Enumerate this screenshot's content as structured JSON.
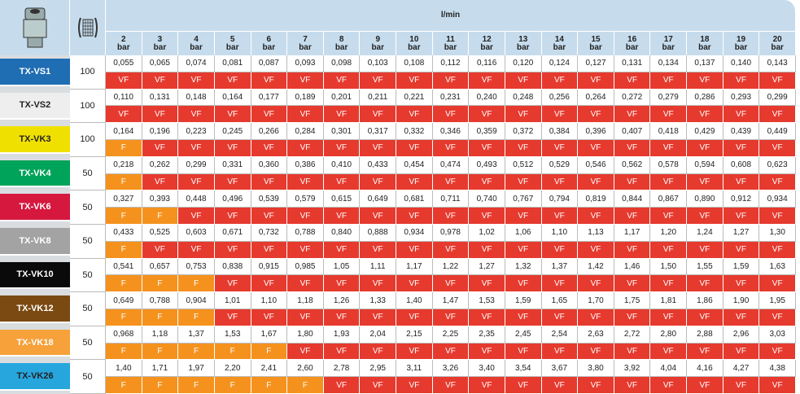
{
  "header": {
    "flow_unit": "l/min",
    "pressure_unit": "bar",
    "pressures": [
      "2",
      "3",
      "4",
      "5",
      "6",
      "7",
      "8",
      "9",
      "10",
      "11",
      "12",
      "13",
      "14",
      "15",
      "16",
      "17",
      "18",
      "19",
      "20"
    ]
  },
  "rows": [
    {
      "name": "TX-VS1",
      "mesh": "100",
      "values": [
        "0,055",
        "0,065",
        "0,074",
        "0,081",
        "0,087",
        "0,093",
        "0,098",
        "0,103",
        "0,108",
        "0,112",
        "0,116",
        "0,120",
        "0,124",
        "0,127",
        "0,131",
        "0,134",
        "0,137",
        "0,140",
        "0,143"
      ],
      "classes": [
        "VF",
        "VF",
        "VF",
        "VF",
        "VF",
        "VF",
        "VF",
        "VF",
        "VF",
        "VF",
        "VF",
        "VF",
        "VF",
        "VF",
        "VF",
        "VF",
        "VF",
        "VF",
        "VF"
      ]
    },
    {
      "name": "TX-VS2",
      "mesh": "100",
      "values": [
        "0,110",
        "0,131",
        "0,148",
        "0,164",
        "0,177",
        "0,189",
        "0,201",
        "0,211",
        "0,221",
        "0,231",
        "0,240",
        "0,248",
        "0,256",
        "0,264",
        "0,272",
        "0,279",
        "0,286",
        "0,293",
        "0,299"
      ],
      "classes": [
        "VF",
        "VF",
        "VF",
        "VF",
        "VF",
        "VF",
        "VF",
        "VF",
        "VF",
        "VF",
        "VF",
        "VF",
        "VF",
        "VF",
        "VF",
        "VF",
        "VF",
        "VF",
        "VF"
      ]
    },
    {
      "name": "TX-VK3",
      "mesh": "100",
      "values": [
        "0,164",
        "0,196",
        "0,223",
        "0,245",
        "0,266",
        "0,284",
        "0,301",
        "0,317",
        "0,332",
        "0,346",
        "0,359",
        "0,372",
        "0,384",
        "0,396",
        "0,407",
        "0,418",
        "0,429",
        "0,439",
        "0,449"
      ],
      "classes": [
        "F",
        "VF",
        "VF",
        "VF",
        "VF",
        "VF",
        "VF",
        "VF",
        "VF",
        "VF",
        "VF",
        "VF",
        "VF",
        "VF",
        "VF",
        "VF",
        "VF",
        "VF",
        "VF"
      ]
    },
    {
      "name": "TX-VK4",
      "mesh": "50",
      "values": [
        "0,218",
        "0,262",
        "0,299",
        "0,331",
        "0,360",
        "0,386",
        "0,410",
        "0,433",
        "0,454",
        "0,474",
        "0,493",
        "0,512",
        "0,529",
        "0,546",
        "0,562",
        "0,578",
        "0,594",
        "0,608",
        "0,623"
      ],
      "classes": [
        "F",
        "VF",
        "VF",
        "VF",
        "VF",
        "VF",
        "VF",
        "VF",
        "VF",
        "VF",
        "VF",
        "VF",
        "VF",
        "VF",
        "VF",
        "VF",
        "VF",
        "VF",
        "VF"
      ]
    },
    {
      "name": "TX-VK6",
      "mesh": "50",
      "values": [
        "0,327",
        "0,393",
        "0,448",
        "0,496",
        "0,539",
        "0,579",
        "0,615",
        "0,649",
        "0,681",
        "0,711",
        "0,740",
        "0,767",
        "0,794",
        "0,819",
        "0,844",
        "0,867",
        "0,890",
        "0,912",
        "0,934"
      ],
      "classes": [
        "F",
        "F",
        "VF",
        "VF",
        "VF",
        "VF",
        "VF",
        "VF",
        "VF",
        "VF",
        "VF",
        "VF",
        "VF",
        "VF",
        "VF",
        "VF",
        "VF",
        "VF",
        "VF"
      ]
    },
    {
      "name": "TX-VK8",
      "mesh": "50",
      "values": [
        "0,433",
        "0,525",
        "0,603",
        "0,671",
        "0,732",
        "0,788",
        "0,840",
        "0,888",
        "0,934",
        "0,978",
        "1,02",
        "1,06",
        "1,10",
        "1,13",
        "1,17",
        "1,20",
        "1,24",
        "1,27",
        "1,30"
      ],
      "classes": [
        "F",
        "VF",
        "VF",
        "VF",
        "VF",
        "VF",
        "VF",
        "VF",
        "VF",
        "VF",
        "VF",
        "VF",
        "VF",
        "VF",
        "VF",
        "VF",
        "VF",
        "VF",
        "VF"
      ]
    },
    {
      "name": "TX-VK10",
      "mesh": "50",
      "values": [
        "0,541",
        "0,657",
        "0,753",
        "0,838",
        "0,915",
        "0,985",
        "1,05",
        "1,11",
        "1,17",
        "1,22",
        "1,27",
        "1,32",
        "1,37",
        "1,42",
        "1,46",
        "1,50",
        "1,55",
        "1,59",
        "1,63"
      ],
      "classes": [
        "F",
        "F",
        "F",
        "VF",
        "VF",
        "VF",
        "VF",
        "VF",
        "VF",
        "VF",
        "VF",
        "VF",
        "VF",
        "VF",
        "VF",
        "VF",
        "VF",
        "VF",
        "VF"
      ]
    },
    {
      "name": "TX-VK12",
      "mesh": "50",
      "values": [
        "0,649",
        "0,788",
        "0,904",
        "1,01",
        "1,10",
        "1,18",
        "1,26",
        "1,33",
        "1,40",
        "1,47",
        "1,53",
        "1,59",
        "1,65",
        "1,70",
        "1,75",
        "1,81",
        "1,86",
        "1,90",
        "1,95"
      ],
      "classes": [
        "F",
        "F",
        "F",
        "VF",
        "VF",
        "VF",
        "VF",
        "VF",
        "VF",
        "VF",
        "VF",
        "VF",
        "VF",
        "VF",
        "VF",
        "VF",
        "VF",
        "VF",
        "VF"
      ]
    },
    {
      "name": "TX-VK18",
      "mesh": "50",
      "values": [
        "0,968",
        "1,18",
        "1,37",
        "1,53",
        "1,67",
        "1,80",
        "1,93",
        "2,04",
        "2,15",
        "2,25",
        "2,35",
        "2,45",
        "2,54",
        "2,63",
        "2,72",
        "2,80",
        "2,88",
        "2,96",
        "3,03"
      ],
      "classes": [
        "F",
        "F",
        "F",
        "F",
        "F",
        "VF",
        "VF",
        "VF",
        "VF",
        "VF",
        "VF",
        "VF",
        "VF",
        "VF",
        "VF",
        "VF",
        "VF",
        "VF",
        "VF"
      ]
    },
    {
      "name": "TX-VK26",
      "mesh": "50",
      "values": [
        "1,40",
        "1,71",
        "1,97",
        "2,20",
        "2,41",
        "2,60",
        "2,78",
        "2,95",
        "3,11",
        "3,26",
        "3,40",
        "3,54",
        "3,67",
        "3,80",
        "3,92",
        "4,04",
        "4,16",
        "4,27",
        "4,38"
      ],
      "classes": [
        "F",
        "F",
        "F",
        "F",
        "F",
        "F",
        "VF",
        "VF",
        "VF",
        "VF",
        "VF",
        "VF",
        "VF",
        "VF",
        "VF",
        "VF",
        "VF",
        "VF",
        "VF"
      ]
    }
  ]
}
